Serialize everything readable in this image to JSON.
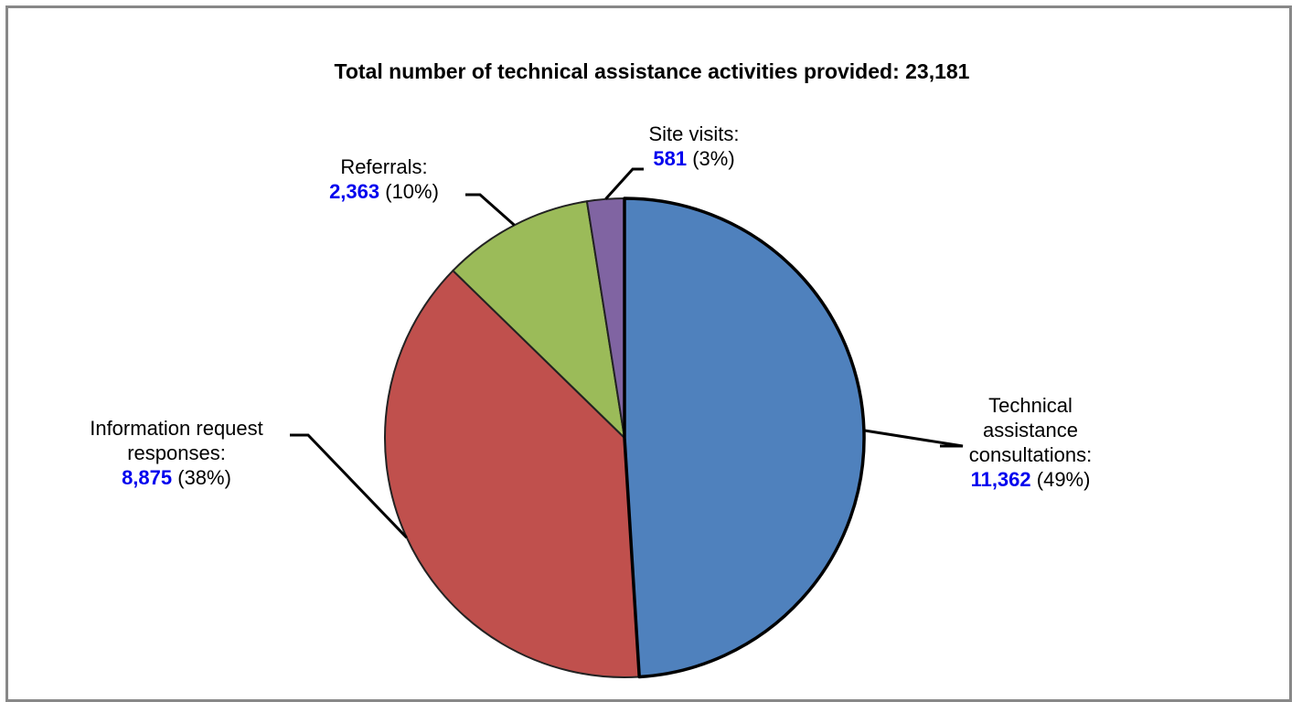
{
  "chart_data": {
    "type": "pie",
    "title": "Total number of technical assistance activities provided: 23,181",
    "categories": [
      "Technical assistance consultations",
      "Information request responses",
      "Referrals",
      "Site visits"
    ],
    "values": [
      11362,
      8875,
      2363,
      581
    ],
    "percent_labels": [
      "(49%)",
      "(38%)",
      "(10%)",
      "(3%)"
    ],
    "value_labels": [
      "11,362",
      "8,875",
      "2,363",
      "581"
    ],
    "label_lines": [
      [
        "Technical",
        "assistance",
        "consultations:"
      ],
      [
        "Information request",
        "responses:"
      ],
      [
        "Referrals:"
      ],
      [
        "Site visits:"
      ]
    ],
    "colors": [
      "#4f81bd",
      "#c0504d",
      "#9bbb59",
      "#8064a2"
    ],
    "value_color": "#0000ee",
    "start_angle": "12 o'clock",
    "direction": "clockwise",
    "legend": "none"
  }
}
